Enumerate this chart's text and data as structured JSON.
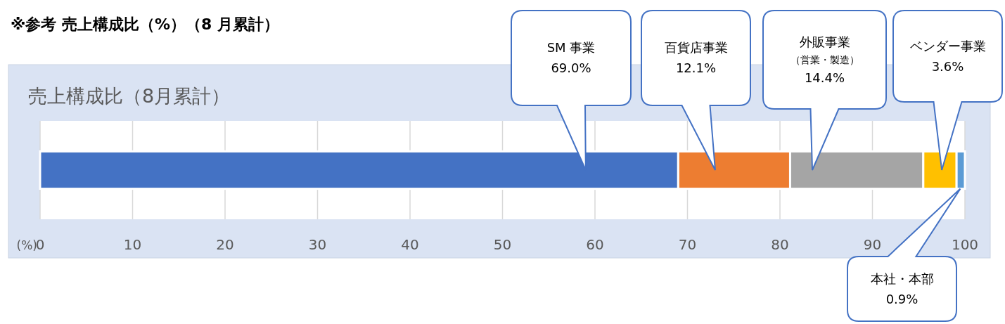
{
  "chart_data": {
    "type": "bar",
    "orientation": "horizontal",
    "stacked": true,
    "title": "※参考  売上構成比（%）（8 月累計）",
    "subtitle": "売上構成比（8月累計）",
    "xlabel": "(%)",
    "categories": [
      null
    ],
    "series": [
      {
        "color": "#4472c4",
        "values": [
          69.0
        ]
      },
      {
        "color": "#ed7d31",
        "values": [
          12.1
        ]
      },
      {
        "color": "#a5a5a5",
        "values": [
          14.4
        ]
      },
      {
        "color": "#ffc000",
        "values": [
          3.6
        ]
      },
      {
        "color": "#5b9bd5",
        "values": [
          0.9
        ]
      }
    ],
    "annotations": [
      "SM 事業",
      "69.0%",
      "百貨店事業",
      "12.1%",
      "外販事業",
      "（営業・製造）",
      "14.4%",
      "ベンダー事業",
      "3.6%",
      "本社・本部",
      "0.9%"
    ],
    "xlim": [
      0,
      100
    ],
    "xticks": [
      0,
      10,
      20,
      30,
      40,
      50,
      60,
      70,
      80,
      90,
      100
    ],
    "grid": "x"
  }
}
